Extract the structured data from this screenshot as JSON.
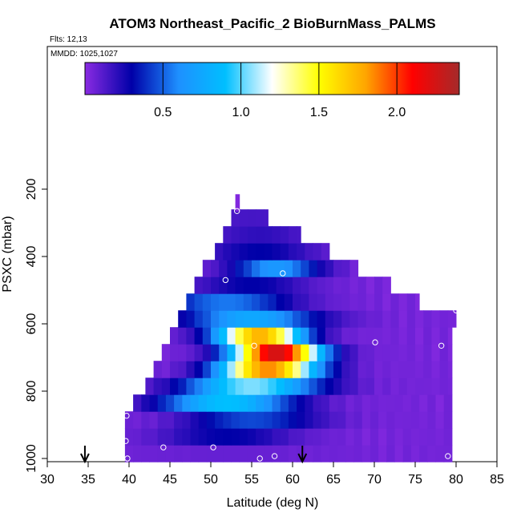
{
  "chart_data": {
    "type": "heatmap",
    "title": "ATOM3 Northeast_Pacific_2 BioBurnMass_PALMS",
    "flights_label": "Flts: 12,13",
    "dates_label": "MMDD: 1025,1027",
    "xlabel": "Latitude (deg N)",
    "ylabel": "PSXC (mbar)",
    "xlim": [
      30,
      85
    ],
    "ylim": [
      1000,
      0
    ],
    "x_ticks": [
      30,
      35,
      40,
      45,
      50,
      55,
      60,
      65,
      70,
      75,
      80,
      85
    ],
    "y_ticks": [
      200,
      400,
      600,
      800,
      1000
    ],
    "colorbar": {
      "range": [
        0,
        2.4
      ],
      "ticks": [
        0.5,
        1.0,
        1.5,
        2.0
      ],
      "tick_labels": [
        "0.5",
        "1.0",
        "1.5",
        "2.0"
      ],
      "colors": [
        "#8a2be2",
        "#0000a8",
        "#1e90ff",
        "#00bfff",
        "#ffffff",
        "#ffff00",
        "#ffa500",
        "#ff0000",
        "#a52a2a"
      ]
    },
    "grid": false,
    "layers": [
      {
        "pressure": 985,
        "lat_min": 39.5,
        "lat_max": 79.5,
        "peak_lat": 52,
        "peak_value": 0.08,
        "width": 20
      },
      {
        "pressure": 935,
        "lat_min": 39.5,
        "lat_max": 79.5,
        "peak_lat": 52,
        "peak_value": 0.3,
        "width": 12
      },
      {
        "pressure": 885,
        "lat_min": 39.5,
        "lat_max": 79.5,
        "peak_lat": 55,
        "peak_value": 0.45,
        "width": 12
      },
      {
        "pressure": 835,
        "lat_min": 40.5,
        "lat_max": 79.5,
        "peak_lat": 52,
        "peak_value": 0.9,
        "width": 12
      },
      {
        "pressure": 785,
        "lat_min": 42,
        "lat_max": 79.5,
        "peak_lat": 55,
        "peak_value": 1.05,
        "width": 12
      },
      {
        "pressure": 735,
        "lat_min": 43,
        "lat_max": 79.5,
        "peak_lat": 57,
        "peak_value": 1.85,
        "width": 9
      },
      {
        "pressure": 685,
        "lat_min": 44,
        "lat_max": 79.5,
        "peak_lat": 58,
        "peak_value": 2.25,
        "width": 8
      },
      {
        "pressure": 635,
        "lat_min": 45,
        "lat_max": 79.5,
        "peak_lat": 56,
        "peak_value": 1.75,
        "width": 8
      },
      {
        "pressure": 585,
        "lat_min": 46,
        "lat_max": 80,
        "peak_lat": 55,
        "peak_value": 0.75,
        "width": 12
      },
      {
        "pressure": 535,
        "lat_min": 47,
        "lat_max": 75.5,
        "peak_lat": 52,
        "peak_value": 0.55,
        "width": 12
      },
      {
        "pressure": 485,
        "lat_min": 48,
        "lat_max": 72,
        "peak_lat": 55,
        "peak_value": 0.3,
        "width": 10
      },
      {
        "pressure": 435,
        "lat_min": 49,
        "lat_max": 68,
        "peak_lat": 58,
        "peak_value": 0.65,
        "width": 8
      },
      {
        "pressure": 385,
        "lat_min": 50.5,
        "lat_max": 64.5,
        "peak_lat": 56,
        "peak_value": 0.3,
        "width": 10
      },
      {
        "pressure": 335,
        "lat_min": 51.5,
        "lat_max": 61,
        "peak_lat": 56,
        "peak_value": 0.2,
        "width": 10
      },
      {
        "pressure": 285,
        "lat_min": 52.5,
        "lat_max": 57,
        "peak_lat": 55,
        "peak_value": 0.15,
        "width": 10
      },
      {
        "pressure": 240,
        "lat_min": 53,
        "lat_max": 53.5,
        "peak_lat": 53,
        "peak_value": 0.02,
        "width": 5
      }
    ],
    "observation_points": [
      {
        "lat": 53.2,
        "pressure": 265
      },
      {
        "lat": 51.8,
        "pressure": 470
      },
      {
        "lat": 58.8,
        "pressure": 450
      },
      {
        "lat": 80,
        "pressure": 560
      },
      {
        "lat": 55.3,
        "pressure": 665
      },
      {
        "lat": 70.1,
        "pressure": 655
      },
      {
        "lat": 78.2,
        "pressure": 665
      },
      {
        "lat": 39.7,
        "pressure": 873
      },
      {
        "lat": 39.6,
        "pressure": 948
      },
      {
        "lat": 44.2,
        "pressure": 967
      },
      {
        "lat": 50.3,
        "pressure": 967
      },
      {
        "lat": 39.8,
        "pressure": 1000
      },
      {
        "lat": 56,
        "pressure": 1000
      },
      {
        "lat": 57.8,
        "pressure": 993
      },
      {
        "lat": 79,
        "pressure": 993
      }
    ],
    "markers": [
      {
        "type": "arrow",
        "lat": 34.6
      },
      {
        "type": "arrow",
        "lat": 61.2
      }
    ]
  }
}
